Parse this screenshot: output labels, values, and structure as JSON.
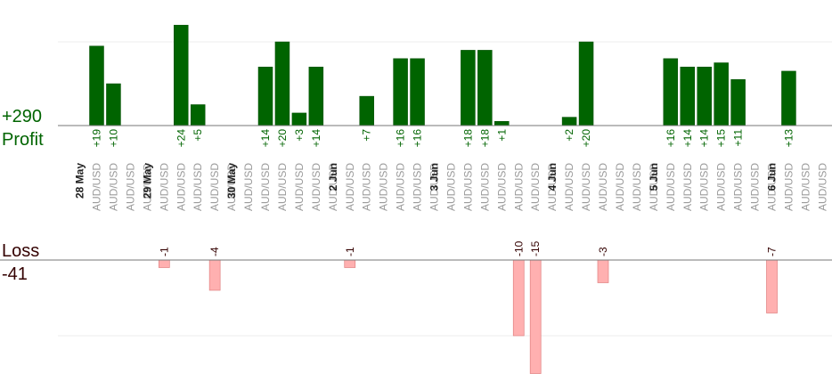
{
  "chart_data": {
    "type": "bar",
    "profit_total": "+290",
    "profit_label": "Profit",
    "loss_label": "Loss",
    "loss_total": "-41",
    "categories": [
      "AUD/USD",
      "AUD/USD",
      "AUD/USD",
      "AUD/USD",
      "AUD/USD",
      "AUD/USD",
      "AUD/USD",
      "AUD/USD",
      "AUD/USD",
      "AUD/USD",
      "AUD/USD",
      "AUD/USD",
      "AUD/USD",
      "AUD/USD",
      "AUD/USD",
      "AUD/USD",
      "AUD/USD",
      "AUD/USD",
      "AUD/USD",
      "AUD/USD",
      "AUD/USD",
      "AUD/USD",
      "AUD/USD",
      "AUD/USD",
      "AUD/USD",
      "AUD/USD",
      "AUD/USD",
      "AUD/USD",
      "AUD/USD",
      "AUD/USD",
      "AUD/USD",
      "AUD/USD",
      "AUD/USD",
      "AUD/USD",
      "AUD/USD",
      "AUD/USD",
      "AUD/USD",
      "AUD/USD",
      "AUD/USD",
      "AUD/USD",
      "AUD/USD",
      "AUD/USD",
      "AUD/USD",
      "AUD/USD"
    ],
    "date_labels": [
      {
        "index": 0,
        "label": "28 May"
      },
      {
        "index": 4,
        "label": "29 May"
      },
      {
        "index": 9,
        "label": "30 May"
      },
      {
        "index": 15,
        "label": "2 Jun"
      },
      {
        "index": 21,
        "label": "3 Jun"
      },
      {
        "index": 28,
        "label": "4 Jun"
      },
      {
        "index": 34,
        "label": "5 Jun"
      },
      {
        "index": 41,
        "label": "6 Jun"
      }
    ],
    "series": [
      {
        "name": "Profit",
        "values": [
          19,
          10,
          null,
          null,
          null,
          24,
          5,
          null,
          null,
          null,
          14,
          20,
          3,
          14,
          null,
          null,
          7,
          null,
          16,
          16,
          null,
          null,
          18,
          18,
          1,
          null,
          null,
          null,
          2,
          20,
          null,
          null,
          null,
          null,
          16,
          14,
          14,
          15,
          11,
          null,
          null,
          13,
          null,
          null
        ],
        "labels": [
          "+19",
          "+10",
          null,
          null,
          null,
          "+24",
          "+5",
          null,
          null,
          null,
          "+14",
          "+20",
          "+3",
          "+14",
          null,
          null,
          "+7",
          null,
          "+16",
          "+16",
          null,
          null,
          "+18",
          "+18",
          "+1",
          null,
          null,
          null,
          "+2",
          "+20",
          null,
          null,
          null,
          null,
          "+16",
          "+14",
          "+14",
          "+15",
          "+11",
          null,
          null,
          "+13",
          null,
          null
        ]
      },
      {
        "name": "Loss",
        "values": [
          null,
          null,
          null,
          null,
          -1,
          null,
          null,
          -4,
          null,
          null,
          null,
          null,
          null,
          null,
          null,
          -1,
          null,
          null,
          null,
          null,
          null,
          null,
          null,
          null,
          null,
          -10,
          -15,
          null,
          null,
          null,
          -3,
          null,
          null,
          null,
          null,
          null,
          null,
          null,
          null,
          null,
          -7,
          null,
          null,
          null
        ],
        "labels": [
          null,
          null,
          null,
          null,
          "-1",
          null,
          null,
          "-4",
          null,
          null,
          null,
          null,
          null,
          null,
          null,
          "-1",
          null,
          null,
          null,
          null,
          null,
          null,
          null,
          null,
          null,
          "-10",
          "-15",
          null,
          null,
          null,
          "-3",
          null,
          null,
          null,
          null,
          null,
          null,
          null,
          null,
          null,
          "-7",
          null,
          null,
          null
        ]
      }
    ],
    "colors": {
      "profit": "#006400",
      "loss": "#ffb0b0",
      "profit_text": "#006400",
      "loss_text": "#330000"
    }
  }
}
